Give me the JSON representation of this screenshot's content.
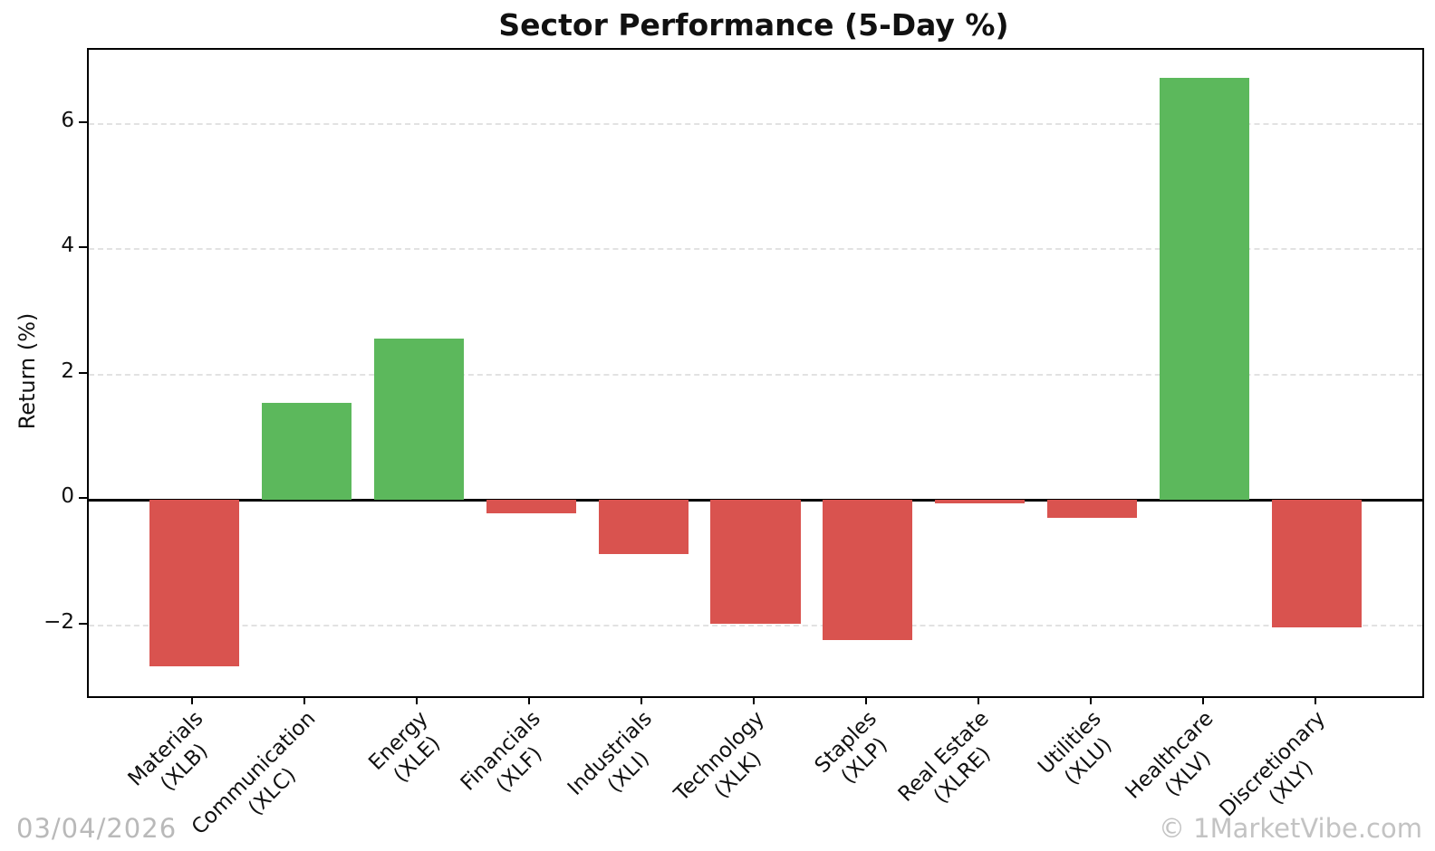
{
  "footer": {
    "date": "03/04/2026",
    "watermark": "© 1MarketVibe.com"
  },
  "colors": {
    "positive": "#5cb85c",
    "negative": "#d9534f",
    "grid": "#e2e2e2",
    "axis": "#000000",
    "footer_text": "#b9b9b9"
  },
  "chart_data": {
    "type": "bar",
    "title": "Sector Performance (5-Day %)",
    "ylabel": "Return (%)",
    "xlabel": "",
    "categories": [
      "Materials\n(XLB)",
      "Communication\n(XLC)",
      "Energy\n(XLE)",
      "Financials\n(XLF)",
      "Industrials\n(XLI)",
      "Technology\n(XLK)",
      "Staples\n(XLP)",
      "Real Estate\n(XLRE)",
      "Utilities\n(XLU)",
      "Healthcare\n(XLV)",
      "Discretionary\n(XLY)"
    ],
    "values": [
      -2.66,
      1.55,
      2.58,
      -0.21,
      -0.87,
      -1.97,
      -2.23,
      -0.06,
      -0.28,
      6.73,
      -2.03
    ],
    "yticks": [
      -2,
      0,
      2,
      4,
      6
    ],
    "ytick_labels": [
      "−2",
      "0",
      "2",
      "4",
      "6"
    ],
    "ylim": [
      -3.13,
      7.18
    ],
    "xlim": [
      -0.94,
      10.94
    ],
    "bar_width_fraction": 0.8,
    "grid": "horizontal-dashed",
    "legend": "none",
    "positive_color": "#5cb85c",
    "negative_color": "#d9534f"
  }
}
